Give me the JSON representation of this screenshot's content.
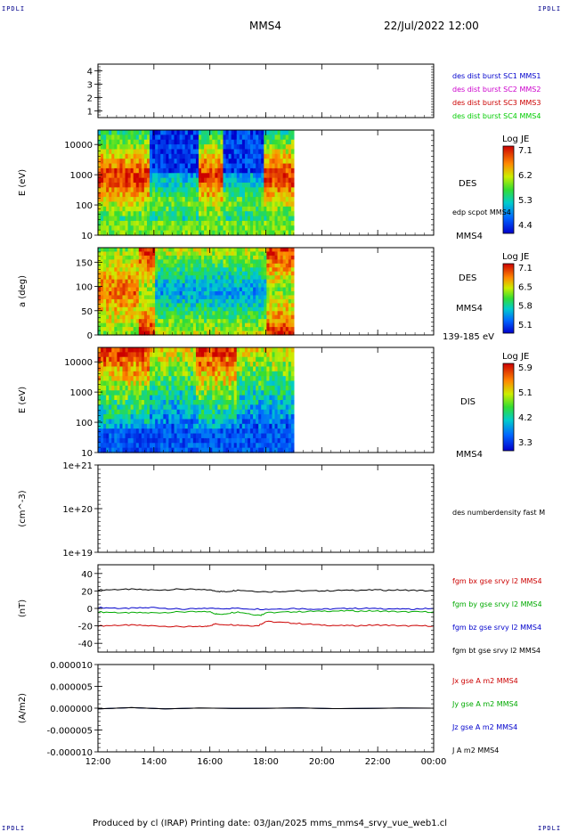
{
  "header": {
    "corner_tag": "IPDLI",
    "mission": "MMS4",
    "datetime": "22/Jul/2022 12:00"
  },
  "footer": {
    "text": "Produced by cl (IRAP)   Printing date: 03/Jan/2025   mms_mms4_srvy_vue_web1.cl"
  },
  "x_axis": {
    "range_hours": [
      12,
      24
    ],
    "tick_labels": [
      "12:00",
      "14:00",
      "16:00",
      "18:00",
      "20:00",
      "22:00",
      "00:00"
    ]
  },
  "chart_data": [
    {
      "type": "line",
      "panel": "burst-availability",
      "y_ticks": [
        "4",
        "3",
        "2",
        "1"
      ],
      "ylim": [
        0.5,
        4.5
      ],
      "legend": [
        {
          "label": "des dist burst SC1 MMS1",
          "color": "#0000cc"
        },
        {
          "label": "des dist burst SC2 MMS2",
          "color": "#cc00cc"
        },
        {
          "label": "des dist burst SC3 MMS3",
          "color": "#cc0000"
        },
        {
          "label": "des dist burst SC4 MMS4",
          "color": "#00cc00"
        }
      ],
      "series": []
    },
    {
      "type": "heatmap",
      "panel": "des-energy-spectrogram",
      "ylabel": "E (eV)",
      "y_scale": "log",
      "ylim": [
        10,
        30000
      ],
      "y_ticks": [
        "10000",
        "1000",
        "100",
        "10"
      ],
      "x_data_extent_hours": [
        12,
        19
      ],
      "labels": [
        "DES",
        "edp scpot MMS4",
        "MMS4"
      ],
      "colorbar": {
        "title": "Log JE",
        "ticks": [
          "7.1",
          "6.2",
          "5.3",
          "4.4"
        ]
      }
    },
    {
      "type": "heatmap",
      "panel": "des-pitch-angle",
      "ylabel": "a (deg)",
      "ylim": [
        0,
        180
      ],
      "y_ticks": [
        "150",
        "100",
        "50",
        "0"
      ],
      "x_data_extent_hours": [
        12,
        19
      ],
      "labels": [
        "DES",
        "MMS4",
        "139-185 eV"
      ],
      "colorbar": {
        "title": "Log JE",
        "ticks": [
          "7.1",
          "6.5",
          "5.8",
          "5.1"
        ]
      }
    },
    {
      "type": "heatmap",
      "panel": "dis-energy-spectrogram",
      "ylabel": "E (eV)",
      "y_scale": "log",
      "ylim": [
        10,
        30000
      ],
      "y_ticks": [
        "10000",
        "1000",
        "100",
        "10"
      ],
      "x_data_extent_hours": [
        12,
        19
      ],
      "labels": [
        "DIS",
        "MMS4"
      ],
      "colorbar": {
        "title": "Log JE",
        "ticks": [
          "5.9",
          "5.1",
          "4.2",
          "3.3"
        ]
      }
    },
    {
      "type": "line",
      "panel": "density",
      "ylabel": "(cm^-3)",
      "y_scale": "log",
      "y_ticks": [
        "1e+21",
        "1e+20",
        "1e+19"
      ],
      "ylim": [
        1e+19,
        1e+21
      ],
      "legend": [
        {
          "label": "des numberdensity fast M",
          "color": "#000000"
        }
      ],
      "series": []
    },
    {
      "type": "line",
      "panel": "magnetic-field",
      "ylabel": "(nT)",
      "ylim": [
        -50,
        50
      ],
      "y_ticks": [
        "40",
        "20",
        "0",
        "-20",
        "-40"
      ],
      "series": [
        {
          "name": "fgm bx gse srvy l2 MMS4",
          "color": "#cc0000",
          "x": [
            12,
            13,
            14,
            15,
            15.8,
            16.2,
            17,
            17.7,
            18,
            19,
            20,
            21,
            22,
            23,
            24
          ],
          "values": [
            -20,
            -19,
            -20,
            -21,
            -21,
            -18,
            -19,
            -20,
            -15,
            -17,
            -19,
            -20,
            -19,
            -20,
            -20
          ]
        },
        {
          "name": "fgm by gse srvy l2 MMS4",
          "color": "#00aa00",
          "x": [
            12,
            13,
            14,
            15,
            16,
            16.3,
            17,
            17.8,
            18,
            19,
            20,
            21,
            22,
            23,
            24
          ],
          "values": [
            -4,
            -5,
            -5,
            -4,
            -4,
            -7,
            -4,
            -8,
            -5,
            -4,
            -3,
            -3,
            -3,
            -4,
            -4
          ]
        },
        {
          "name": "fgm bz gse srvy l2 MMS4",
          "color": "#0000cc",
          "x": [
            12,
            13,
            14,
            15,
            16,
            17,
            18,
            19,
            20,
            21,
            22,
            23,
            24
          ],
          "values": [
            1,
            0,
            1,
            -1,
            0,
            0,
            -1,
            0,
            -1,
            0,
            0,
            -1,
            0
          ]
        },
        {
          "name": "fgm bt gse srvy l2 MMS4",
          "color": "#000000",
          "x": [
            12,
            13,
            14,
            15,
            16,
            16.5,
            17,
            18,
            19,
            20,
            21,
            22,
            23,
            24
          ],
          "values": [
            21,
            22,
            21,
            22,
            21,
            19,
            21,
            19,
            20,
            20,
            21,
            21,
            21,
            20
          ]
        }
      ]
    },
    {
      "type": "line",
      "panel": "current-density",
      "ylabel": "(A/m2)",
      "ylim": [
        -1e-05,
        1e-05
      ],
      "y_ticks": [
        "0.000010",
        "0.000005",
        "0.000000",
        "-0.000005",
        "-0.000010"
      ],
      "series": [
        {
          "name": "Jx gse A m2 MMS4",
          "color": "#cc0000",
          "x": [
            12,
            24
          ],
          "values": [
            0,
            0
          ]
        },
        {
          "name": "Jy gse A m2 MMS4",
          "color": "#00aa00",
          "x": [
            12,
            24
          ],
          "values": [
            0,
            0
          ]
        },
        {
          "name": "Jz gse A m2 MMS4",
          "color": "#0000cc",
          "x": [
            12,
            24
          ],
          "values": [
            0,
            0
          ]
        },
        {
          "name": "J A m2 MMS4",
          "color": "#000000",
          "x": [
            12,
            24
          ],
          "values": [
            0,
            0
          ]
        }
      ]
    }
  ]
}
